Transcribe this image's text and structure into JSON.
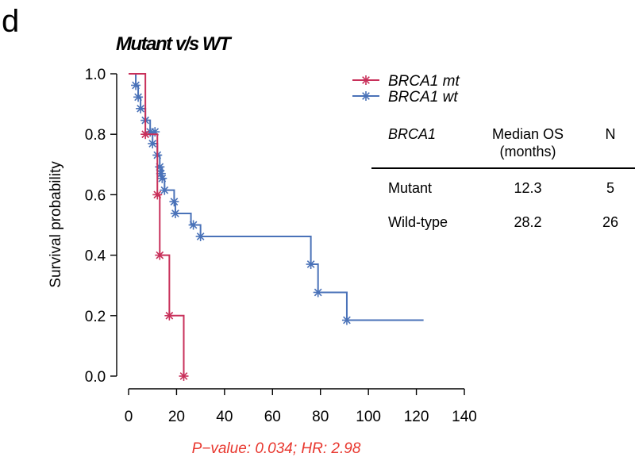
{
  "panel_label": "d",
  "chart_data": {
    "type": "line",
    "subtype": "kaplan-meier",
    "title": "Mutant v/s WT",
    "xlabel": "",
    "ylabel": "Survival probability",
    "xlim": [
      0,
      140
    ],
    "ylim": [
      0,
      1
    ],
    "xticks": [
      "0",
      "20",
      "40",
      "60",
      "80",
      "100",
      "120",
      "140"
    ],
    "yticks": [
      "0.0",
      "0.2",
      "0.4",
      "0.6",
      "0.8",
      "1.0"
    ],
    "legend": {
      "position": "top-right"
    },
    "series": [
      {
        "name": "BRCA1 mt",
        "color": "#C8305A",
        "steps": [
          [
            0,
            1.0
          ],
          [
            7,
            0.8
          ],
          [
            12,
            0.6
          ],
          [
            13,
            0.4
          ],
          [
            17,
            0.2
          ],
          [
            23,
            0.0
          ]
        ],
        "end_x": 23,
        "censor": [
          [
            7,
            0.8
          ],
          [
            12,
            0.6
          ],
          [
            13,
            0.4
          ],
          [
            17,
            0.2
          ],
          [
            23,
            0.0
          ]
        ]
      },
      {
        "name": "BRCA1 wt",
        "color": "#4A72B8",
        "steps": [
          [
            0,
            1.0
          ],
          [
            3,
            0.962
          ],
          [
            4,
            0.923
          ],
          [
            5,
            0.885
          ],
          [
            7,
            0.846
          ],
          [
            9,
            0.808
          ],
          [
            10,
            0.769
          ],
          [
            12,
            0.731
          ],
          [
            13,
            0.692
          ],
          [
            14,
            0.654
          ],
          [
            15,
            0.615
          ],
          [
            19,
            0.577
          ],
          [
            19.5,
            0.538
          ],
          [
            26,
            0.5
          ],
          [
            30,
            0.462
          ],
          [
            76,
            0.37
          ],
          [
            79,
            0.277
          ],
          [
            91,
            0.185
          ]
        ],
        "end_x": 123,
        "censor": [
          [
            3,
            0.962
          ],
          [
            4,
            0.923
          ],
          [
            5,
            0.885
          ],
          [
            7,
            0.846
          ],
          [
            9,
            0.808
          ],
          [
            11,
            0.808
          ],
          [
            10,
            0.769
          ],
          [
            12,
            0.731
          ],
          [
            13,
            0.692
          ],
          [
            13.5,
            0.67
          ],
          [
            14,
            0.654
          ],
          [
            15,
            0.615
          ],
          [
            19,
            0.577
          ],
          [
            19.5,
            0.538
          ],
          [
            27,
            0.5
          ],
          [
            30,
            0.462
          ],
          [
            76,
            0.37
          ],
          [
            79,
            0.277
          ],
          [
            91,
            0.185
          ]
        ]
      }
    ]
  },
  "table": {
    "headers": [
      "BRCA1",
      "Median OS",
      "(months)",
      "N"
    ],
    "rows": [
      {
        "group": "Mutant",
        "median": "12.3",
        "n": "5"
      },
      {
        "group": "Wild-type",
        "median": "28.2",
        "n": "26"
      }
    ]
  },
  "footnote": {
    "text": "P−value: 0.034; HR: 2.98",
    "color": "#E8372E"
  }
}
